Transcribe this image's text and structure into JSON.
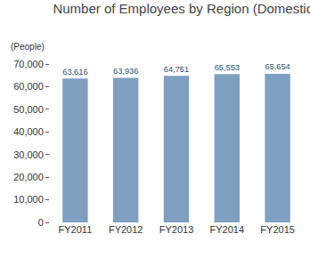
{
  "chart_data": {
    "type": "bar",
    "title": "Number of Employees by Region (Domestic)",
    "y_label": "(People)",
    "categories": [
      "FY2011",
      "FY2012",
      "FY2013",
      "FY2014",
      "FY2015"
    ],
    "values": [
      63616,
      63936,
      64751,
      65553,
      65654
    ],
    "value_labels": [
      "63,616",
      "63,936",
      "64,751",
      "65,553",
      "65,654"
    ],
    "color": "#7f9fc0",
    "ylim": [
      0,
      70000
    ],
    "yticks": [
      0,
      {
        "value": 10000,
        "label": "10,000"
      },
      {
        "value": 20000,
        "label": "20,000"
      },
      {
        "value": 30000,
        "label": "30,000"
      },
      {
        "value": 40000,
        "label": "40,000"
      },
      {
        "value": 50000,
        "label": "50,000"
      },
      {
        "value": 60000,
        "label": "60,000"
      },
      {
        "value": 70000,
        "label": "70,000"
      }
    ],
    "grid": false,
    "data_labels": true
  }
}
